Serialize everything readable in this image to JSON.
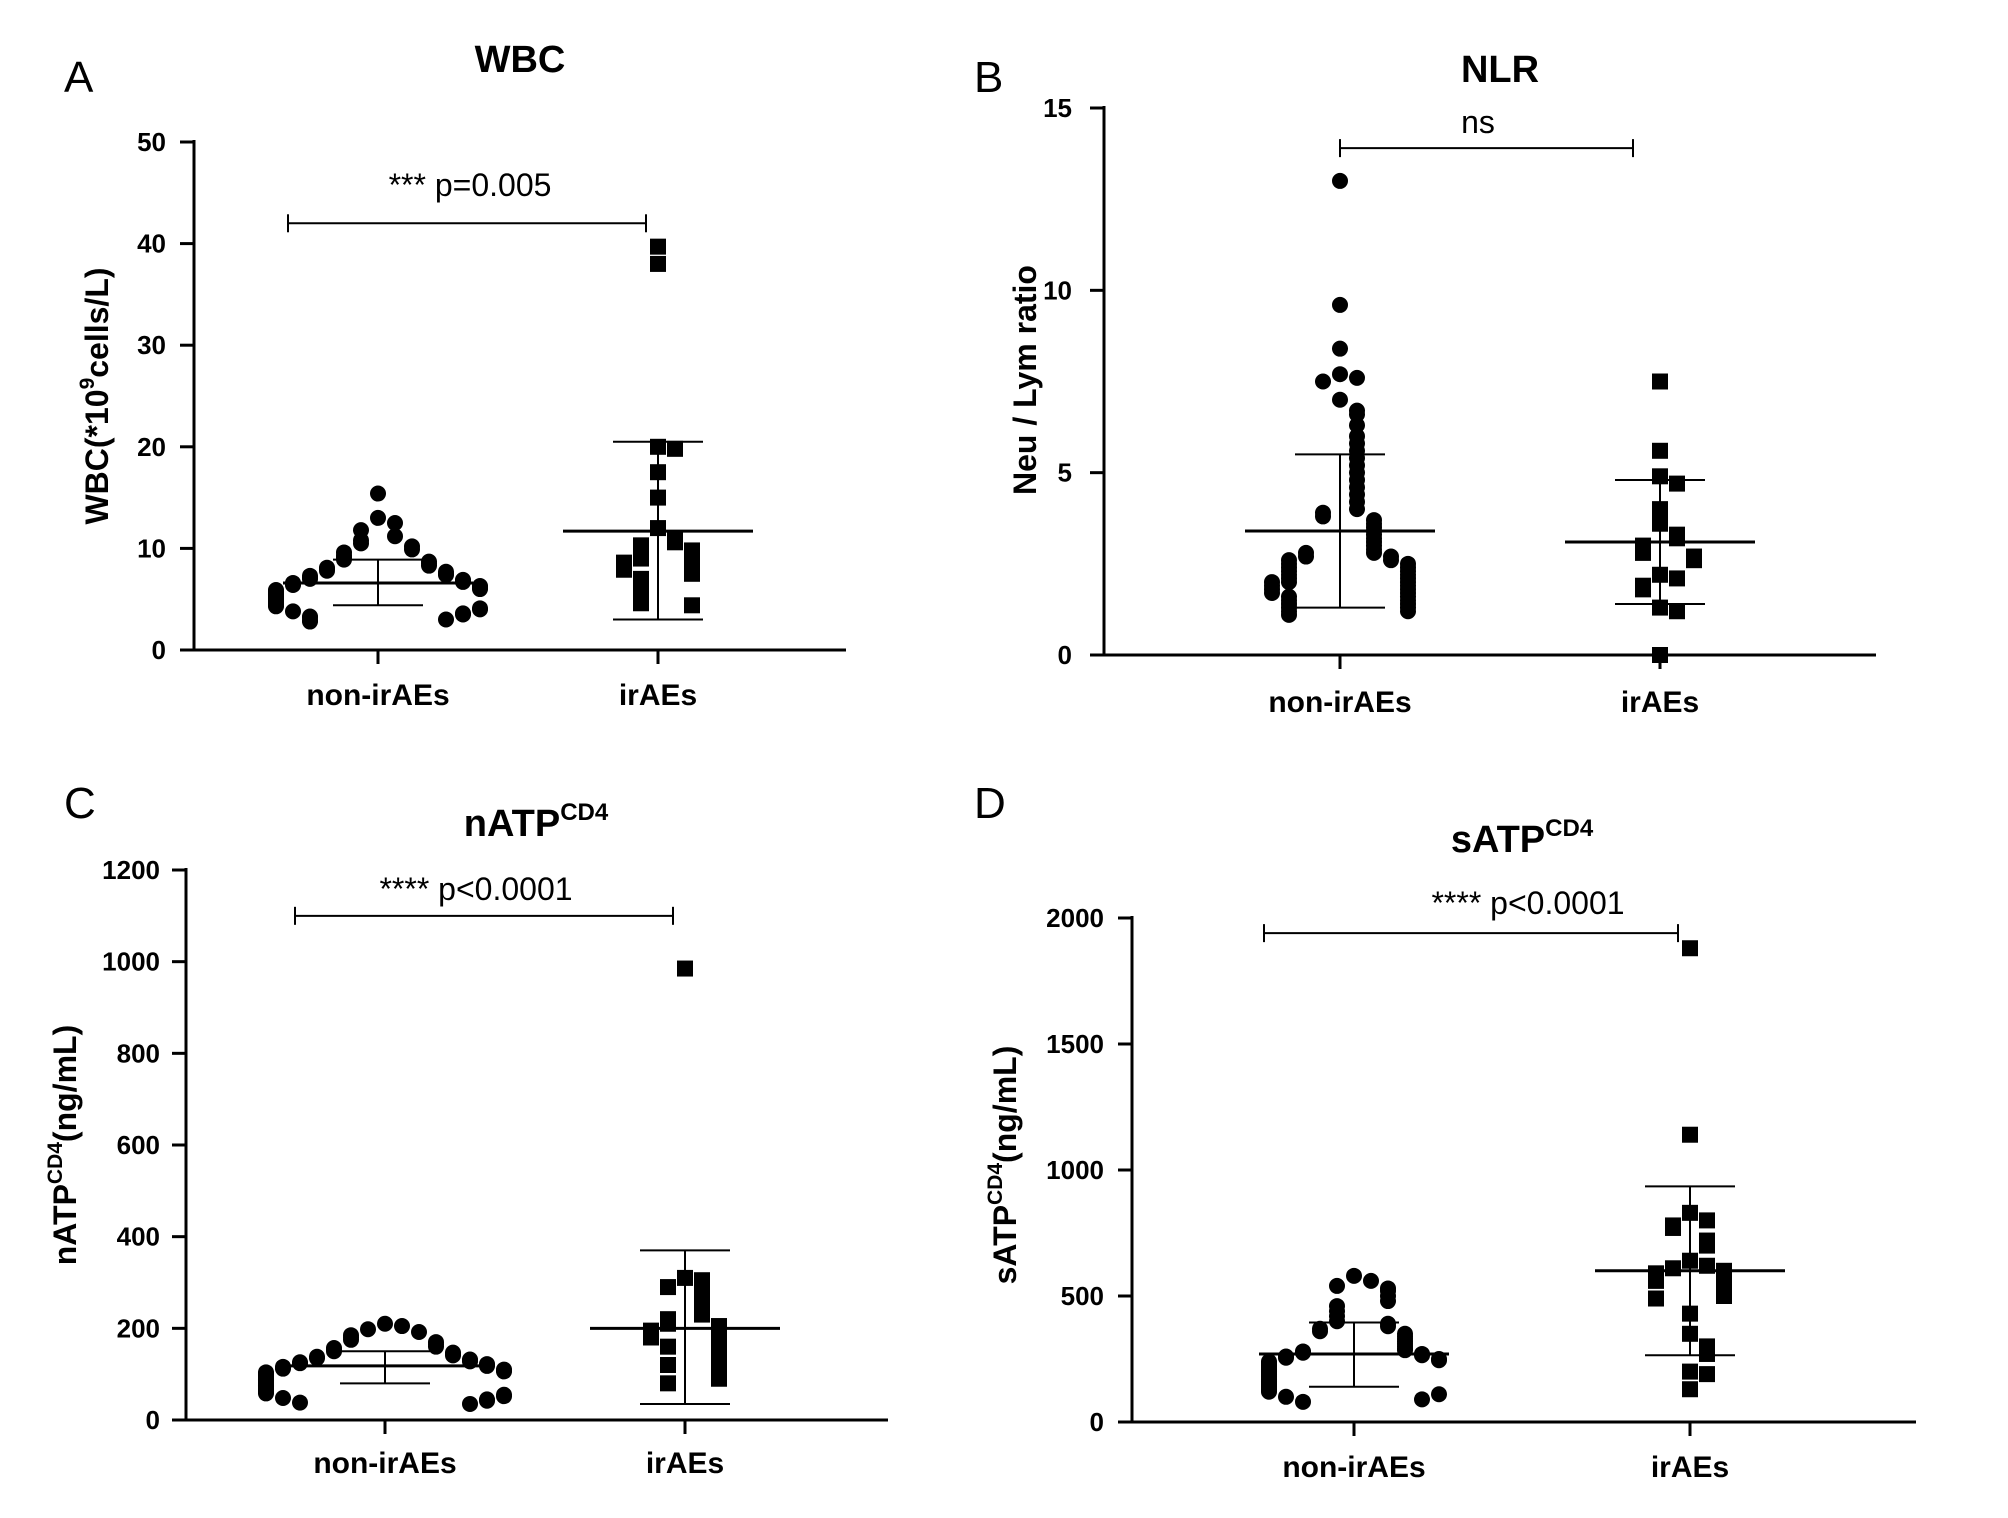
{
  "figure": {
    "panels": [
      {
        "letter": "A",
        "title": "WBC",
        "title_sup": "",
        "ylabel_main": "WBC(*10",
        "ylabel_sup": "9",
        "ylabel_rest": "cells/L)",
        "annotation": "*** p=0.005"
      },
      {
        "letter": "B",
        "title": "NLR",
        "title_sup": "",
        "ylabel_main": "Neu / Lym ratio",
        "ylabel_sup": "",
        "ylabel_rest": "",
        "annotation": "ns"
      },
      {
        "letter": "C",
        "title": "nATP",
        "title_sup": "CD4",
        "ylabel_main": "nATP",
        "ylabel_sup": "CD4",
        "ylabel_rest": "(ng/mL)",
        "annotation": "**** p<0.0001"
      },
      {
        "letter": "D",
        "title": "sATP",
        "title_sup": "CD4",
        "ylabel_main": "sATP",
        "ylabel_sup": "CD4",
        "ylabel_rest": "(ng/mL)",
        "annotation": "**** p<0.0001"
      }
    ]
  },
  "chart_data": [
    {
      "type": "scatter",
      "title": "WBC",
      "ylabel": "WBC(*10^9cells/L)",
      "categories": [
        "non-irAEs",
        "irAEs"
      ],
      "ylim": [
        0,
        50
      ],
      "yticks": [
        0,
        10,
        20,
        30,
        40,
        50
      ],
      "series": [
        {
          "name": "non-irAEs",
          "marker": "circle",
          "mean": 6.6,
          "sd_low": 4.4,
          "sd_high": 8.9,
          "values": [
            15.4,
            13.0,
            12.5,
            11.8,
            11.2,
            10.8,
            10.5,
            10.2,
            9.9,
            9.6,
            9.3,
            9.1,
            8.9,
            8.7,
            8.5,
            8.3,
            8.1,
            8.0,
            7.8,
            7.7,
            7.5,
            7.4,
            7.3,
            7.1,
            7.0,
            6.9,
            6.8,
            6.7,
            6.6,
            6.5,
            6.4,
            6.3,
            6.2,
            6.1,
            6.0,
            5.9,
            5.8,
            5.7,
            5.6,
            5.5,
            5.4,
            5.3,
            5.2,
            5.1,
            5.0,
            4.9,
            4.8,
            4.7,
            4.6,
            4.5,
            4.4,
            4.3,
            4.1,
            4.0,
            3.8,
            3.6,
            3.5,
            3.3,
            3.2,
            3.0,
            2.9,
            2.8
          ]
        },
        {
          "name": "irAEs",
          "marker": "square",
          "mean": 11.7,
          "sd_low": 3.0,
          "sd_high": 20.5,
          "values": [
            39.7,
            38.0,
            20.0,
            19.8,
            17.5,
            15.0,
            12.0,
            11.0,
            10.6,
            10.3,
            9.8,
            9.4,
            9.0,
            8.8,
            8.6,
            8.3,
            7.9,
            7.5,
            7.0,
            6.6,
            6.0,
            5.5,
            5.0,
            4.6,
            4.4
          ]
        }
      ],
      "significance": {
        "from": "non-irAEs",
        "to": "irAEs",
        "y": 42,
        "label": "*** p=0.005"
      }
    },
    {
      "type": "scatter",
      "title": "NLR",
      "ylabel": "Neu / Lym ratio",
      "categories": [
        "non-irAEs",
        "irAEs"
      ],
      "ylim": [
        0,
        15
      ],
      "yticks": [
        0,
        5,
        10,
        15
      ],
      "series": [
        {
          "name": "non-irAEs",
          "marker": "circle",
          "mean": 3.4,
          "sd_low": 1.3,
          "sd_high": 5.5,
          "values": [
            13.0,
            9.6,
            8.4,
            7.7,
            7.6,
            7.5,
            7.0,
            6.7,
            6.6,
            6.3,
            6.0,
            5.8,
            5.6,
            5.4,
            5.2,
            5.0,
            4.8,
            4.6,
            4.4,
            4.2,
            4.0,
            3.9,
            3.8,
            3.7,
            3.6,
            3.5,
            3.4,
            3.3,
            3.2,
            3.1,
            3.0,
            2.9,
            2.8,
            2.8,
            2.7,
            2.7,
            2.6,
            2.6,
            2.5,
            2.5,
            2.4,
            2.4,
            2.3,
            2.3,
            2.2,
            2.2,
            2.1,
            2.1,
            2.0,
            2.0,
            2.0,
            1.9,
            1.9,
            1.8,
            1.8,
            1.7,
            1.7,
            1.6,
            1.6,
            1.5,
            1.5,
            1.4,
            1.4,
            1.3,
            1.3,
            1.2,
            1.2,
            1.1
          ]
        },
        {
          "name": "irAEs",
          "marker": "square",
          "mean": 3.1,
          "sd_low": 1.4,
          "sd_high": 4.8,
          "values": [
            7.5,
            5.6,
            4.9,
            4.7,
            4.0,
            3.6,
            3.3,
            3.2,
            3.0,
            2.9,
            2.8,
            2.7,
            2.6,
            2.2,
            2.1,
            1.9,
            1.8,
            1.3,
            1.2,
            0.0
          ]
        }
      ],
      "significance": {
        "from": "non-irAEs",
        "to": "irAEs",
        "y": 13.9,
        "label": "ns"
      }
    },
    {
      "type": "scatter",
      "title": "nATP CD4",
      "ylabel": "nATP CD4 (ng/mL)",
      "categories": [
        "non-irAEs",
        "irAEs"
      ],
      "ylim": [
        0,
        1200
      ],
      "yticks": [
        0,
        200,
        400,
        600,
        800,
        1000,
        1200
      ],
      "series": [
        {
          "name": "non-irAEs",
          "marker": "circle",
          "mean": 118,
          "sd_low": 80,
          "sd_high": 150,
          "values": [
            210,
            205,
            198,
            192,
            185,
            180,
            175,
            170,
            165,
            160,
            157,
            154,
            150,
            147,
            144,
            141,
            138,
            135,
            132,
            130,
            128,
            126,
            124,
            122,
            120,
            118,
            116,
            114,
            112,
            110,
            108,
            106,
            104,
            102,
            100,
            98,
            96,
            94,
            92,
            90,
            88,
            86,
            84,
            82,
            80,
            78,
            76,
            74,
            72,
            70,
            68,
            66,
            64,
            62,
            60,
            58,
            55,
            52,
            48,
            45,
            42,
            38,
            35
          ]
        },
        {
          "name": "irAEs",
          "marker": "square",
          "mean": 200,
          "sd_low": 35,
          "sd_high": 370,
          "values": [
            985,
            310,
            305,
            290,
            275,
            260,
            240,
            230,
            220,
            210,
            205,
            200,
            195,
            190,
            180,
            170,
            160,
            155,
            150,
            140,
            130,
            120,
            115,
            110,
            100,
            90,
            80
          ]
        }
      ],
      "significance": {
        "from": "non-irAEs",
        "to": "irAEs",
        "y": 1100,
        "label": "**** p<0.0001"
      }
    },
    {
      "type": "scatter",
      "title": "sATP CD4",
      "ylabel": "sATP CD4 (ng/mL)",
      "categories": [
        "non-irAEs",
        "irAEs"
      ],
      "ylim": [
        0,
        2000
      ],
      "yticks": [
        0,
        500,
        1000,
        1500,
        2000
      ],
      "series": [
        {
          "name": "non-irAEs",
          "marker": "circle",
          "mean": 270,
          "sd_low": 140,
          "sd_high": 395,
          "values": [
            580,
            560,
            540,
            530,
            520,
            500,
            480,
            460,
            440,
            420,
            400,
            390,
            380,
            370,
            360,
            350,
            340,
            330,
            320,
            310,
            300,
            290,
            285,
            280,
            275,
            270,
            265,
            260,
            255,
            250,
            245,
            240,
            235,
            230,
            225,
            220,
            215,
            210,
            205,
            200,
            195,
            190,
            185,
            180,
            175,
            170,
            165,
            160,
            155,
            150,
            145,
            140,
            135,
            130,
            125,
            120,
            110,
            100,
            90,
            80
          ]
        },
        {
          "name": "irAEs",
          "marker": "square",
          "mean": 600,
          "sd_low": 265,
          "sd_high": 935,
          "values": [
            1880,
            1140,
            830,
            800,
            780,
            770,
            720,
            700,
            640,
            620,
            610,
            600,
            590,
            580,
            560,
            540,
            530,
            520,
            500,
            490,
            430,
            350,
            300,
            270,
            200,
            190,
            130
          ]
        }
      ],
      "significance": {
        "from": "non-irAEs",
        "to": "irAEs",
        "y": 1940,
        "label": "**** p<0.0001"
      }
    }
  ]
}
